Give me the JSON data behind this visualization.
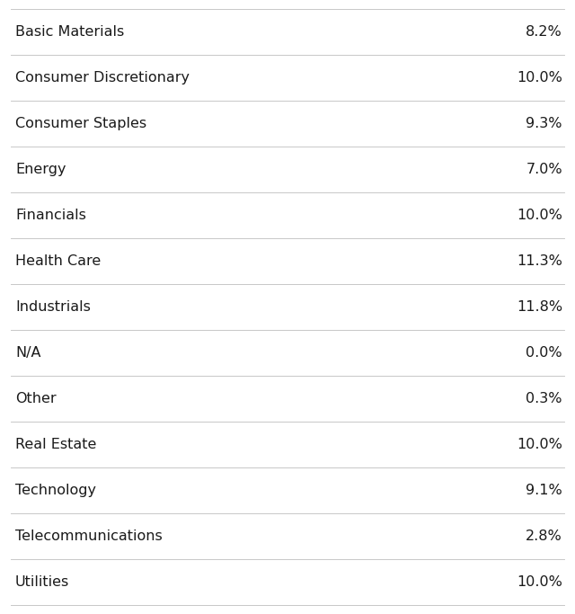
{
  "rows": [
    {
      "label": "Basic Materials",
      "value": "8.2%"
    },
    {
      "label": "Consumer Discretionary",
      "value": "10.0%"
    },
    {
      "label": "Consumer Staples",
      "value": "9.3%"
    },
    {
      "label": "Energy",
      "value": "7.0%"
    },
    {
      "label": "Financials",
      "value": "10.0%"
    },
    {
      "label": "Health Care",
      "value": "11.3%"
    },
    {
      "label": "Industrials",
      "value": "11.8%"
    },
    {
      "label": "N/A",
      "value": "0.0%"
    },
    {
      "label": "Other",
      "value": "0.3%"
    },
    {
      "label": "Real Estate",
      "value": "10.0%"
    },
    {
      "label": "Technology",
      "value": "9.1%"
    },
    {
      "label": "Telecommunications",
      "value": "2.8%"
    },
    {
      "label": "Utilities",
      "value": "10.0%"
    }
  ],
  "background_color": "#ffffff",
  "text_color": "#1a1a1a",
  "line_color": "#c8c8c8",
  "label_fontsize": 11.5,
  "value_fontsize": 11.5,
  "font_family": "DejaVu Sans"
}
